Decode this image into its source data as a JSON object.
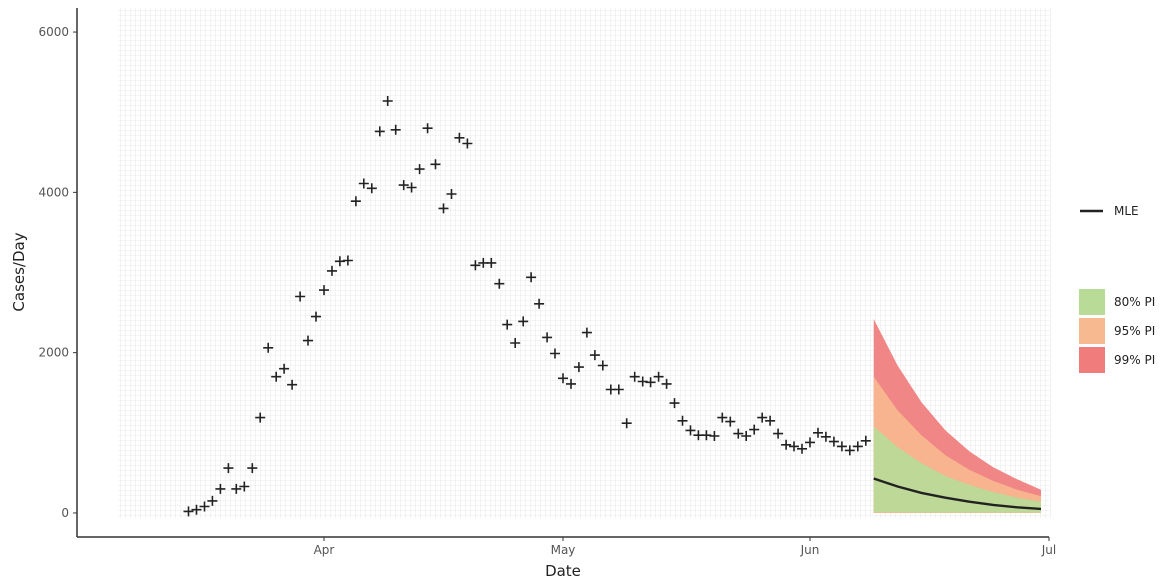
{
  "chart_data": {
    "type": "scatter",
    "xlabel": "Date",
    "ylabel": "Cases/Day",
    "x_ticks": [
      "Apr",
      "May",
      "Jun",
      "Jul"
    ],
    "y_ticks": [
      "0",
      "2000",
      "4000",
      "6000"
    ],
    "xlim": [
      "2020-03-01",
      "2020-07-01"
    ],
    "ylim": [
      -300,
      6300
    ],
    "grid": true,
    "legend_position": "right",
    "observed": {
      "marker": "plus",
      "color": "#222222",
      "x": [
        "2020-03-15",
        "2020-03-16",
        "2020-03-17",
        "2020-03-18",
        "2020-03-19",
        "2020-03-20",
        "2020-03-21",
        "2020-03-22",
        "2020-03-23",
        "2020-03-24",
        "2020-03-25",
        "2020-03-26",
        "2020-03-27",
        "2020-03-28",
        "2020-03-29",
        "2020-03-30",
        "2020-03-31",
        "2020-04-01",
        "2020-04-02",
        "2020-04-03",
        "2020-04-04",
        "2020-04-05",
        "2020-04-06",
        "2020-04-07",
        "2020-04-08",
        "2020-04-09",
        "2020-04-10",
        "2020-04-11",
        "2020-04-12",
        "2020-04-13",
        "2020-04-14",
        "2020-04-15",
        "2020-04-16",
        "2020-04-17",
        "2020-04-18",
        "2020-04-19",
        "2020-04-20",
        "2020-04-21",
        "2020-04-22",
        "2020-04-23",
        "2020-04-24",
        "2020-04-25",
        "2020-04-26",
        "2020-04-27",
        "2020-04-28",
        "2020-04-29",
        "2020-04-30",
        "2020-05-01",
        "2020-05-02",
        "2020-05-03",
        "2020-05-04",
        "2020-05-05",
        "2020-05-06",
        "2020-05-07",
        "2020-05-08",
        "2020-05-09",
        "2020-05-10",
        "2020-05-11",
        "2020-05-12",
        "2020-05-13",
        "2020-05-14",
        "2020-05-15",
        "2020-05-16",
        "2020-05-17",
        "2020-05-18",
        "2020-05-19",
        "2020-05-20",
        "2020-05-21",
        "2020-05-22",
        "2020-05-23",
        "2020-05-24",
        "2020-05-25",
        "2020-05-26",
        "2020-05-27",
        "2020-05-28",
        "2020-05-29",
        "2020-05-30",
        "2020-05-31",
        "2020-06-01",
        "2020-06-02",
        "2020-06-03",
        "2020-06-04",
        "2020-06-05",
        "2020-06-06",
        "2020-06-07",
        "2020-06-08"
      ],
      "y": [
        20,
        40,
        80,
        150,
        300,
        560,
        300,
        330,
        560,
        1190,
        2060,
        1700,
        1800,
        1600,
        2700,
        2150,
        2450,
        2780,
        3020,
        3140,
        3150,
        3890,
        4110,
        4050,
        4760,
        5140,
        4780,
        4090,
        4060,
        4290,
        4800,
        4350,
        3800,
        3980,
        4680,
        4610,
        3090,
        3120,
        3120,
        2860,
        2350,
        2120,
        2390,
        2940,
        2610,
        2190,
        1990,
        1680,
        1610,
        1820,
        2250,
        1970,
        1840,
        1540,
        1540,
        1120,
        1700,
        1640,
        1630,
        1700,
        1610,
        1370,
        1150,
        1030,
        970,
        970,
        960,
        1190,
        1140,
        990,
        960,
        1040,
        1190,
        1150,
        990,
        850,
        830,
        800,
        880,
        1000,
        950,
        890,
        830,
        780,
        830,
        900
      ]
    },
    "forecast": {
      "x": [
        "2020-06-09",
        "2020-06-12",
        "2020-06-15",
        "2020-06-18",
        "2020-06-21",
        "2020-06-24",
        "2020-06-27",
        "2020-06-30"
      ],
      "mle": [
        430,
        330,
        250,
        190,
        140,
        100,
        70,
        50
      ],
      "pi80_lower": [
        10,
        10,
        5,
        5,
        5,
        5,
        5,
        5
      ],
      "pi80_upper": [
        1080,
        820,
        620,
        460,
        350,
        260,
        190,
        140
      ],
      "pi95_lower": [
        0,
        0,
        0,
        0,
        0,
        0,
        0,
        0
      ],
      "pi95_upper": [
        1700,
        1280,
        970,
        720,
        540,
        400,
        290,
        210
      ],
      "pi99_lower": [
        0,
        0,
        0,
        0,
        0,
        0,
        0,
        0
      ],
      "pi99_upper": [
        2420,
        1840,
        1380,
        1030,
        770,
        570,
        420,
        290
      ]
    },
    "legend": {
      "line_entries": [
        {
          "label": "MLE",
          "color": "#222222"
        }
      ],
      "fill_entries": [
        {
          "label": "80% PI",
          "color": "#b8dc98"
        },
        {
          "label": "95% PI",
          "color": "#f7b990"
        },
        {
          "label": "99% PI",
          "color": "#f07c7c"
        }
      ]
    }
  }
}
